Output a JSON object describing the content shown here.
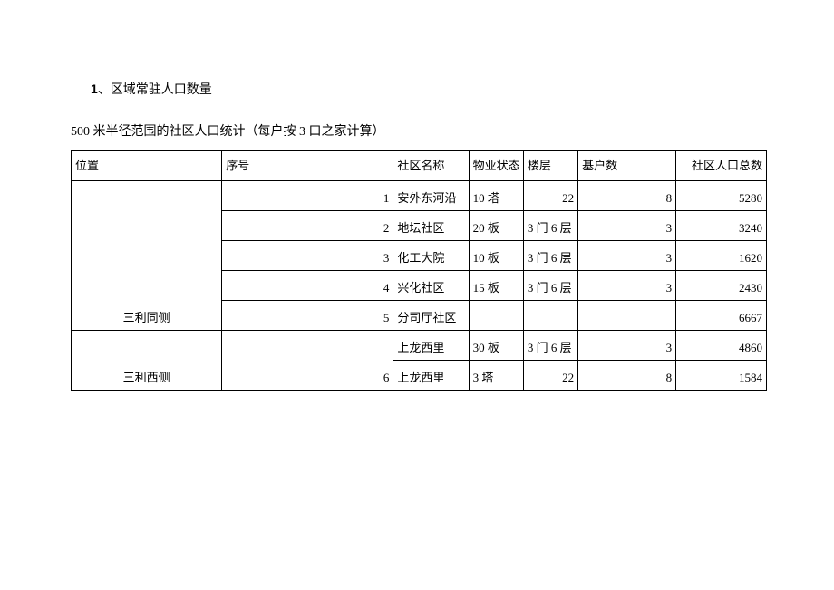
{
  "heading_num": "1",
  "heading_sep": "、",
  "heading_text": "区域常驻人口数量",
  "subheading": "500 米半径范围的社区人口统计（每户按 3 口之家计算）",
  "columns": {
    "location": "位置",
    "seq": "序号",
    "name": "社区名称",
    "property": "物业状态",
    "floor": "楼层",
    "base": "基户数",
    "population": "社区人口总数"
  },
  "group1": {
    "location": "三利同侧",
    "rows": [
      {
        "seq": "1",
        "name": "安外东河沿",
        "property": "10 塔",
        "floor": "22",
        "base": "8",
        "population": "5280",
        "floor_numeric": true
      },
      {
        "seq": "2",
        "name": "地坛社区",
        "property": "20 板",
        "floor": "3 门 6 层",
        "base": "3",
        "population": "3240",
        "floor_numeric": false
      },
      {
        "seq": "3",
        "name": "化工大院",
        "property": "10 板",
        "floor": "3 门 6 层",
        "base": "3",
        "population": "1620",
        "floor_numeric": false
      },
      {
        "seq": "4",
        "name": "兴化社区",
        "property": "15 板",
        "floor": "3 门 6 层",
        "base": "3",
        "population": "2430",
        "floor_numeric": false
      },
      {
        "seq": "5",
        "name": "分司厅社区",
        "property": "",
        "floor": "",
        "base": "",
        "population": "6667",
        "floor_numeric": false
      }
    ]
  },
  "group2": {
    "location": "三利西侧",
    "seq_merged": "6",
    "row_a": {
      "name": "上龙西里",
      "property": "30 板",
      "floor": "3 门 6 层",
      "base": "3",
      "population": "4860"
    },
    "row_b": {
      "name": "上龙西里",
      "property": "3 塔",
      "floor": "22",
      "base": "8",
      "population": "1584"
    }
  }
}
